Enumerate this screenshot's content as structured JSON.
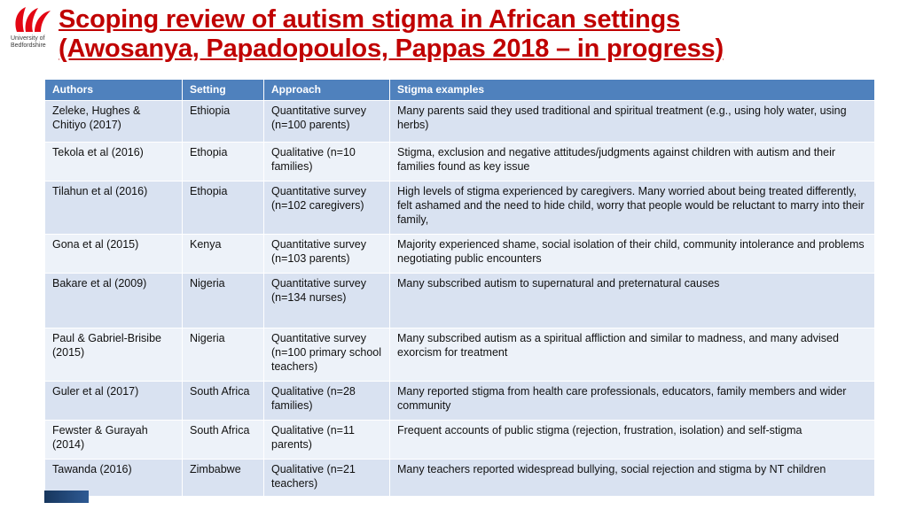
{
  "logo": {
    "line1": "University of",
    "line2": "Bedfordshire"
  },
  "title": {
    "line1": "Scoping review of autism stigma in African settings",
    "line2": "(Awosanya, Papadopoulos, Pappas 2018 – in progress)"
  },
  "colors": {
    "title_red": "#c00000",
    "header_bg": "#4f81bd",
    "row_odd": "#d9e2f1",
    "row_even": "#edf2f9",
    "logo_red": "#e30613"
  },
  "table": {
    "headers": [
      "Authors",
      "Setting",
      "Approach",
      "Stigma examples"
    ],
    "rows": [
      {
        "authors": "Zeleke, Hughes & Chitiyo (2017)",
        "setting": "Ethiopia",
        "approach": "Quantitative survey (n=100 parents)",
        "stigma": "Many parents said they used traditional and spiritual treatment (e.g., using holy water, using herbs)"
      },
      {
        "authors": "Tekola et al (2016)",
        "setting": "Ethopia",
        "approach": "Qualitative (n=10 families)",
        "stigma": "Stigma, exclusion and negative attitudes/judgments against children with autism and their families found as key issue"
      },
      {
        "authors": "Tilahun et al (2016)",
        "setting": "Ethopia",
        "approach": "Quantitative survey (n=102 caregivers)",
        "stigma": "High levels of stigma experienced by caregivers. Many worried about being treated differently, felt ashamed and the need to hide child, worry that people would be reluctant to marry into their family,"
      },
      {
        "authors": "Gona et al (2015)",
        "setting": "Kenya",
        "approach": "Quantitative survey (n=103 parents)",
        "stigma": "Majority experienced shame, social isolation of their child, community intolerance and problems negotiating public encounters"
      },
      {
        "authors": "Bakare et al (2009)",
        "setting": "Nigeria",
        "approach": "Quantitative survey (n=134 nurses)",
        "stigma": "Many subscribed autism to supernatural and preternatural causes"
      },
      {
        "authors": "Paul & Gabriel-Brisibe (2015)",
        "setting": "Nigeria",
        "approach": "Quantitative survey (n=100 primary school teachers)",
        "stigma": "Many subscribed autism as a spiritual affliction and similar to madness, and many advised exorcism for treatment"
      },
      {
        "authors": "Guler et al (2017)",
        "setting": "South Africa",
        "approach": "Qualitative (n=28 families)",
        "stigma": "Many reported stigma from health care professionals, educators, family members and wider community"
      },
      {
        "authors": "Fewster & Gurayah (2014)",
        "setting": "South Africa",
        "approach": "Qualitative (n=11 parents)",
        "stigma": "Frequent accounts of public stigma (rejection, frustration, isolation) and self-stigma"
      },
      {
        "authors": "Tawanda (2016)",
        "setting": "Zimbabwe",
        "approach": "Qualitative (n=21 teachers)",
        "stigma": "Many teachers reported widespread bullying, social rejection and stigma by NT children"
      }
    ]
  }
}
